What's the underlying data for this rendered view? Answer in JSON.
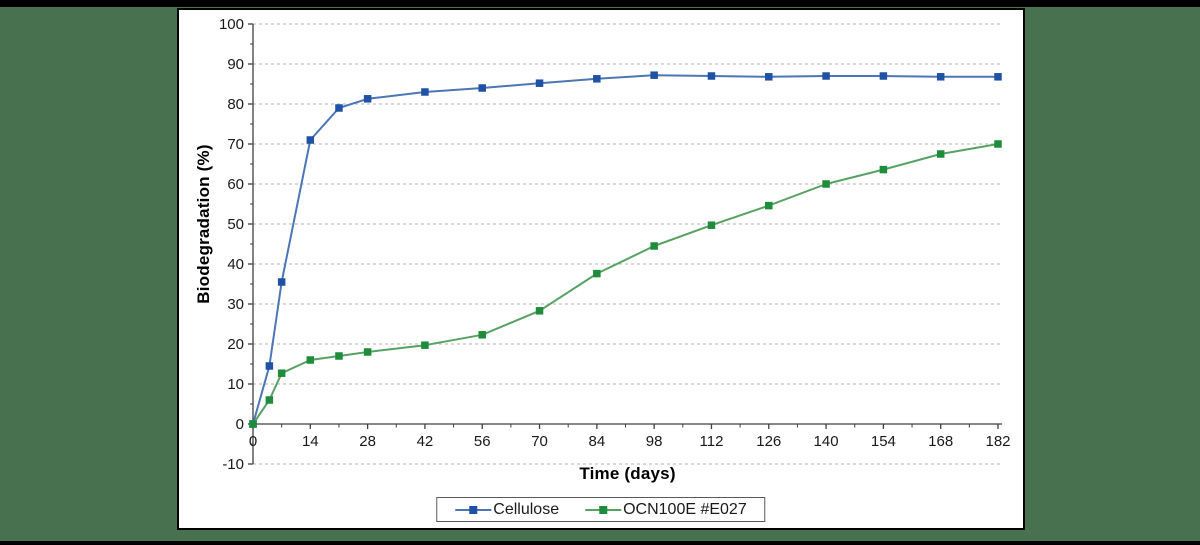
{
  "colors": {
    "background_green": "#48724F",
    "frame_black": "#000000",
    "card_white": "#FFFFFF",
    "axis_line": "#404040",
    "gridline": "#B3B3B3",
    "tick_label": "#1a1a1a",
    "legend_border": "#595959"
  },
  "chart_data": {
    "type": "line",
    "title": "",
    "xlabel": "Time (days)",
    "ylabel": "Biodegradation (%)",
    "xlim": [
      0,
      182
    ],
    "ylim": [
      -10,
      100
    ],
    "x_ticks": [
      0,
      14,
      28,
      42,
      56,
      70,
      84,
      98,
      112,
      126,
      140,
      154,
      168,
      182
    ],
    "x_minor_tick_step": 7,
    "y_ticks": [
      -10,
      0,
      10,
      20,
      30,
      40,
      50,
      60,
      70,
      80,
      90,
      100
    ],
    "y_minor_tick_step": 5,
    "grid": "horizontal dashed",
    "legend_position": "bottom-center",
    "x": [
      0,
      4,
      7,
      14,
      21,
      28,
      42,
      56,
      70,
      84,
      98,
      112,
      126,
      140,
      154,
      168,
      182
    ],
    "series": [
      {
        "name": "Cellulose",
        "line_color": "#4C76B5",
        "marker_color": "#1F52A5",
        "marker": "square",
        "values": [
          0,
          14.5,
          35.5,
          71,
          79,
          81.3,
          83,
          84,
          85.2,
          86.3,
          87.2,
          87,
          86.8,
          87,
          87,
          86.8,
          86.8
        ]
      },
      {
        "name": "OCN100E #E027",
        "line_color": "#57A263",
        "marker_color": "#1E8C3C",
        "marker": "square",
        "values": [
          0,
          6,
          12.7,
          16,
          17,
          18,
          19.7,
          22.3,
          28.3,
          37.6,
          44.5,
          49.7,
          54.6,
          60,
          63.6,
          67.5,
          70
        ]
      }
    ]
  }
}
